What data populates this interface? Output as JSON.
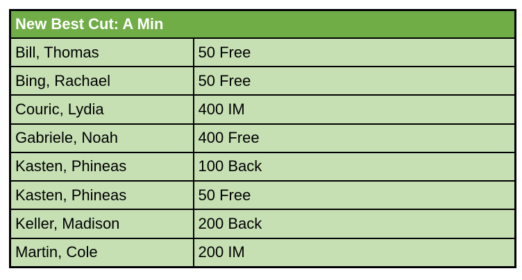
{
  "chart_data": {
    "type": "table",
    "title": "New Best Cut: A Min",
    "rows": [
      [
        "Bill, Thomas",
        "50 Free"
      ],
      [
        "Bing, Rachael",
        "50 Free"
      ],
      [
        "Couric, Lydia",
        "400 IM"
      ],
      [
        "Gabriele, Noah",
        "400 Free"
      ],
      [
        "Kasten, Phineas",
        "100 Back"
      ],
      [
        "Kasten, Phineas",
        "50 Free"
      ],
      [
        "Keller, Madison",
        "200 Back"
      ],
      [
        "Martin, Cole",
        "200 IM"
      ]
    ]
  },
  "colors": {
    "header_bg": "#70AD47",
    "header_text": "#FFFFFF",
    "row_bg": "#C6E0B4",
    "row_text": "#000000",
    "border": "#000000"
  }
}
